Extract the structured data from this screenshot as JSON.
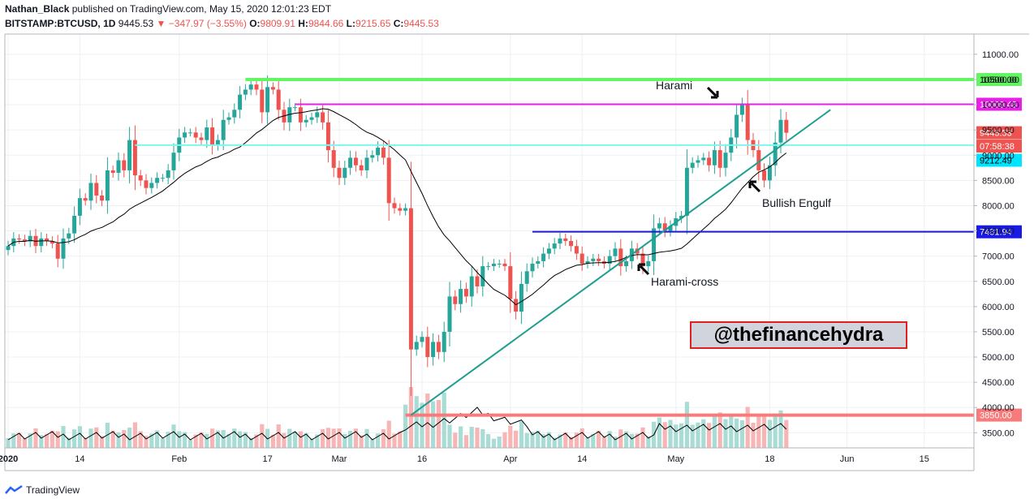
{
  "header": {
    "author": "Nathan_Black",
    "published_text": "published on TradingView.com, May 15, 2020 12:01:23 EDT",
    "symbol": "BITSTAMP:BTCUSD, 1D",
    "last": "9445.53",
    "change": "−347.97 (−3.55%)",
    "o_label": "O:",
    "o": "9809.91",
    "h_label": "H:",
    "h": "9844.66",
    "l_label": "L:",
    "l": "9215.65",
    "c_label": "C:",
    "c": "9445.53"
  },
  "annotations": {
    "harami": "Harami",
    "bullish_engulf": "Bullish Engulf",
    "harami_cross": "Harami-cross",
    "watermark": "@thefinancehydra"
  },
  "brand": {
    "name": "TradingView"
  },
  "colors": {
    "up": "#26a69a",
    "down": "#ef5350",
    "level_green": "#64f564",
    "level_magenta": "#e91ee9",
    "level_cyan": "#7ff5f0",
    "level_blue": "#1a1ae6",
    "level_red": "#f77b7b",
    "trend": "#1e9e90"
  },
  "chart_data": {
    "type": "candlestick",
    "ylim": [
      3200,
      11400
    ],
    "price_ticks": [
      "11000.00",
      "10500.00",
      "10000.00",
      "9500.00",
      "9000.00",
      "8500.00",
      "8000.00",
      "7500.00",
      "7000.00",
      "6500.00",
      "6000.00",
      "5500.00",
      "5000.00",
      "4500.00",
      "4000.00",
      "3500.00"
    ],
    "price_tick_values": [
      11000,
      10500,
      10000,
      9500,
      9000,
      8500,
      8000,
      7500,
      7000,
      6500,
      6000,
      5500,
      5000,
      4500,
      4000,
      3500
    ],
    "time_ticks": [
      {
        "label": "2020",
        "day": 0
      },
      {
        "label": "14",
        "day": 13
      },
      {
        "label": "Feb",
        "day": 31
      },
      {
        "label": "17",
        "day": 47
      },
      {
        "label": "Mar",
        "day": 60
      },
      {
        "label": "16",
        "day": 75
      },
      {
        "label": "Apr",
        "day": 91
      },
      {
        "label": "14",
        "day": 104
      },
      {
        "label": "May",
        "day": 121
      },
      {
        "label": "18",
        "day": 138
      },
      {
        "label": "Jun",
        "day": 152
      },
      {
        "label": "15",
        "day": 166
      }
    ],
    "levels": [
      {
        "label": "10500.00",
        "value": 10500,
        "from_day": 43,
        "color": "level_green"
      },
      {
        "label": "10009.48",
        "value": 10009.48,
        "from_day": 52,
        "color": "level_magenta"
      },
      {
        "label": "7481.94",
        "value": 7481.94,
        "from_day": 95,
        "color": "level_blue"
      },
      {
        "label": "3850.00",
        "value": 3850,
        "from_day": 72,
        "color": "level_red"
      },
      {
        "label": "",
        "value": 9200,
        "from_day": 23,
        "color": "level_cyan"
      }
    ],
    "price_labels": [
      {
        "label": "9445.53",
        "value": 9445.53,
        "color": "#ef5350"
      },
      {
        "label": "07:58:38",
        "value": 9180,
        "color": "#ef5350"
      },
      {
        "label": "9212.49",
        "value": 8900,
        "color": "#00e5ff"
      }
    ],
    "trendline": {
      "from": {
        "day": 73,
        "price": 3850
      },
      "to": {
        "day": 149,
        "price": 9900
      }
    },
    "closes": [
      7200,
      7350,
      7330,
      7290,
      7400,
      7200,
      7350,
      7300,
      7250,
      6950,
      7350,
      7450,
      7800,
      8150,
      8100,
      8450,
      8200,
      8100,
      8700,
      8650,
      8900,
      8700,
      9300,
      8600,
      8500,
      8350,
      8450,
      8550,
      8550,
      8700,
      9050,
      9350,
      9450,
      9450,
      9350,
      9300,
      9550,
      9200,
      9300,
      9700,
      9750,
      9900,
      10200,
      10300,
      10400,
      10300,
      9850,
      10350,
      10300,
      9900,
      9650,
      9950,
      9950,
      9650,
      9700,
      9750,
      9850,
      9650,
      9100,
      8750,
      8550,
      8750,
      8950,
      8800,
      8700,
      8950,
      9000,
      9150,
      8950,
      8050,
      7950,
      7900,
      7950,
      5150,
      5300,
      5400,
      5000,
      5300,
      5100,
      5500,
      6200,
      6050,
      6350,
      6200,
      6600,
      6400,
      6800,
      6800,
      6850,
      6850,
      6800,
      6150,
      5900,
      6450,
      6700,
      6850,
      6900,
      7050,
      7150,
      7250,
      7350,
      7300,
      7200,
      7050,
      6850,
      6900,
      6950,
      6900,
      6850,
      7000,
      7150,
      6800,
      6900,
      7150,
      7050,
      6800,
      6900,
      7550,
      7650,
      7500,
      7600,
      7750,
      7800,
      8750,
      8850,
      8900,
      8950,
      8800,
      9100,
      8750,
      9050,
      9350,
      9800,
      10000,
      9300,
      9100,
      8700,
      8500,
      8800,
      9250,
      9700,
      9445
    ]
  }
}
